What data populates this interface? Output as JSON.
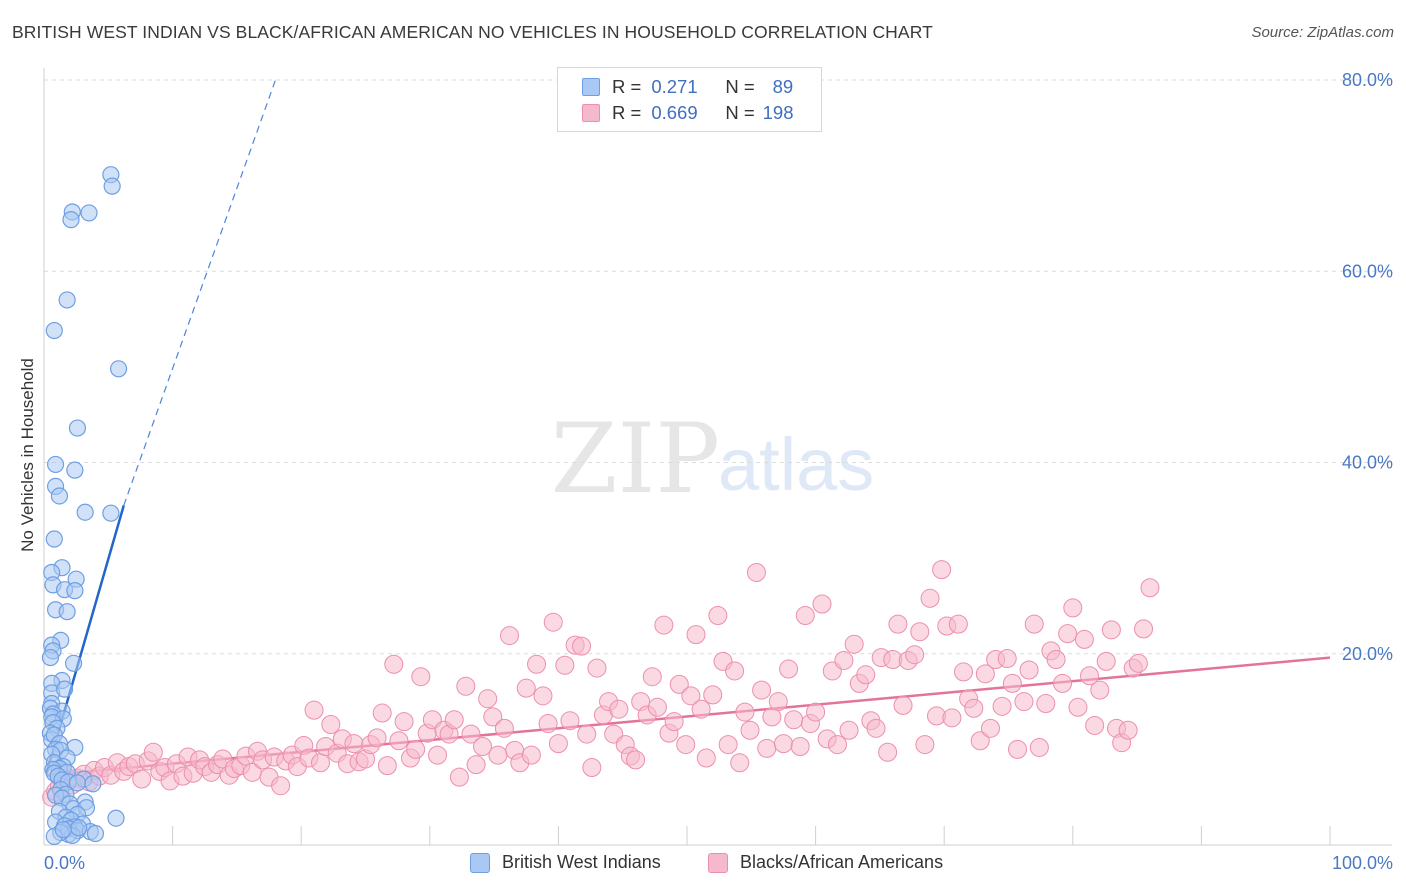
{
  "title": "BRITISH WEST INDIAN VS BLACK/AFRICAN AMERICAN NO VEHICLES IN HOUSEHOLD CORRELATION CHART",
  "source": "Source: ZipAtlas.com",
  "watermark": {
    "zip": "ZIP",
    "atlas": "atlas"
  },
  "colors": {
    "blue_fill": "#a9c8f3",
    "blue_stroke": "#6f9fe3",
    "blue_line": "#2266cc",
    "pink_fill": "#f6b9cc",
    "pink_stroke": "#ec8fae",
    "pink_line": "#e4739c",
    "tick_text": "#4a78c4",
    "grid": "#dcdcdc"
  },
  "legend": {
    "rows": [
      {
        "r_label": "R =",
        "r_value": "0.271",
        "n_label": "N =",
        "n_value": "89"
      },
      {
        "r_label": "R =",
        "r_value": "0.669",
        "n_label": "N =",
        "n_value": "198"
      }
    ]
  },
  "bottom_legend": [
    "British West Indians",
    "Blacks/African Americans"
  ],
  "chart_data": {
    "type": "scatter",
    "title": "BRITISH WEST INDIAN VS BLACK/AFRICAN AMERICAN NO VEHICLES IN HOUSEHOLD CORRELATION CHART",
    "xlabel": "",
    "ylabel": "No Vehicles in Household",
    "xlim": [
      0,
      100
    ],
    "ylim": [
      0,
      80
    ],
    "x_tick_labels": [
      "0.0%",
      "100.0%"
    ],
    "y_tick_labels": [
      "20.0%",
      "40.0%",
      "60.0%",
      "80.0%"
    ],
    "y_ticks": [
      20,
      40,
      60,
      80
    ],
    "grid": true,
    "legend_placement": "top-center",
    "series": [
      {
        "name": "British West Indians",
        "r": 0.271,
        "n": 89,
        "trend": {
          "x": [
            0.2,
            6.2
          ],
          "y": [
            7.5,
            35.5
          ],
          "extended_to": [
            18,
            80
          ]
        },
        "points": [
          [
            5.2,
            70.1
          ],
          [
            5.3,
            68.9
          ],
          [
            2.2,
            66.2
          ],
          [
            3.5,
            66.1
          ],
          [
            2.1,
            65.4
          ],
          [
            1.8,
            57.0
          ],
          [
            0.8,
            53.8
          ],
          [
            5.8,
            49.8
          ],
          [
            2.6,
            43.6
          ],
          [
            0.9,
            39.8
          ],
          [
            2.4,
            39.2
          ],
          [
            0.9,
            37.5
          ],
          [
            1.2,
            36.5
          ],
          [
            3.2,
            34.8
          ],
          [
            5.2,
            34.7
          ],
          [
            0.8,
            32.0
          ],
          [
            1.4,
            29.0
          ],
          [
            0.6,
            28.5
          ],
          [
            2.5,
            27.8
          ],
          [
            0.7,
            27.2
          ],
          [
            1.6,
            26.7
          ],
          [
            2.4,
            26.6
          ],
          [
            0.9,
            24.6
          ],
          [
            1.8,
            24.4
          ],
          [
            1.3,
            21.4
          ],
          [
            0.6,
            20.9
          ],
          [
            0.7,
            20.3
          ],
          [
            0.5,
            19.6
          ],
          [
            2.3,
            19.0
          ],
          [
            1.4,
            17.2
          ],
          [
            0.6,
            16.9
          ],
          [
            0.6,
            15.9
          ],
          [
            1.6,
            16.3
          ],
          [
            0.6,
            14.8
          ],
          [
            0.5,
            14.3
          ],
          [
            1.4,
            14.0
          ],
          [
            0.7,
            13.7
          ],
          [
            0.6,
            13.4
          ],
          [
            1.5,
            13.2
          ],
          [
            0.7,
            12.8
          ],
          [
            1.0,
            12.2
          ],
          [
            0.5,
            11.7
          ],
          [
            0.6,
            11.0
          ],
          [
            0.8,
            11.5
          ],
          [
            1.2,
            10.6
          ],
          [
            2.4,
            10.2
          ],
          [
            0.9,
            10.0
          ],
          [
            1.3,
            9.9
          ],
          [
            0.6,
            9.5
          ],
          [
            1.8,
            9.1
          ],
          [
            0.8,
            8.6
          ],
          [
            1.5,
            8.2
          ],
          [
            1.2,
            8.0
          ],
          [
            0.7,
            7.9
          ],
          [
            0.8,
            7.5
          ],
          [
            1.8,
            7.6
          ],
          [
            1.1,
            7.2
          ],
          [
            1.4,
            6.8
          ],
          [
            1.9,
            6.6
          ],
          [
            3.1,
            6.9
          ],
          [
            3.8,
            6.4
          ],
          [
            2.6,
            6.5
          ],
          [
            1.3,
            5.8
          ],
          [
            1.7,
            5.3
          ],
          [
            0.9,
            5.2
          ],
          [
            1.4,
            4.9
          ],
          [
            3.2,
            4.5
          ],
          [
            2.0,
            4.3
          ],
          [
            2.3,
            3.8
          ],
          [
            3.3,
            3.9
          ],
          [
            1.2,
            3.5
          ],
          [
            2.6,
            3.2
          ],
          [
            1.7,
            2.9
          ],
          [
            5.6,
            2.8
          ],
          [
            2.1,
            2.6
          ],
          [
            0.9,
            2.4
          ],
          [
            3.0,
            2.2
          ],
          [
            1.6,
            2.0
          ],
          [
            2.4,
            1.9
          ],
          [
            1.9,
            1.7
          ],
          [
            2.6,
            1.5
          ],
          [
            3.6,
            1.4
          ],
          [
            4.0,
            1.2
          ],
          [
            1.9,
            1.1
          ],
          [
            2.2,
            1.0
          ],
          [
            2.7,
            1.8
          ],
          [
            1.3,
            1.3
          ],
          [
            0.8,
            0.9
          ],
          [
            1.5,
            1.6
          ]
        ]
      },
      {
        "name": "Blacks/African Americans",
        "r": 0.669,
        "n": 198,
        "trend": {
          "x": [
            0.2,
            100
          ],
          "y": [
            7.3,
            19.6
          ]
        },
        "points": [
          [
            0.6,
            5.0
          ],
          [
            0.9,
            5.6
          ],
          [
            1.2,
            6.2
          ],
          [
            1.5,
            7.6
          ],
          [
            1.8,
            6.8
          ],
          [
            2.2,
            6.3
          ],
          [
            2.6,
            7.0
          ],
          [
            3.1,
            7.4
          ],
          [
            3.5,
            6.6
          ],
          [
            3.9,
            7.8
          ],
          [
            4.3,
            7.2
          ],
          [
            4.7,
            8.1
          ],
          [
            5.2,
            7.3
          ],
          [
            5.7,
            8.6
          ],
          [
            6.2,
            7.7
          ],
          [
            6.6,
            8.2
          ],
          [
            7.1,
            8.5
          ],
          [
            7.6,
            6.9
          ],
          [
            8.1,
            8.8
          ],
          [
            8.5,
            9.7
          ],
          [
            9.0,
            7.7
          ],
          [
            9.4,
            8.1
          ],
          [
            9.8,
            6.7
          ],
          [
            10.3,
            8.5
          ],
          [
            10.8,
            7.2
          ],
          [
            11.2,
            9.2
          ],
          [
            11.6,
            7.5
          ],
          [
            12.1,
            8.9
          ],
          [
            12.5,
            8.2
          ],
          [
            13.0,
            7.6
          ],
          [
            13.5,
            8.4
          ],
          [
            13.9,
            9.0
          ],
          [
            14.4,
            7.3
          ],
          [
            14.8,
            8.0
          ],
          [
            15.3,
            8.3
          ],
          [
            15.7,
            9.3
          ],
          [
            16.2,
            7.6
          ],
          [
            16.6,
            9.8
          ],
          [
            17.0,
            8.9
          ],
          [
            17.5,
            7.1
          ],
          [
            17.9,
            9.2
          ],
          [
            18.4,
            6.2
          ],
          [
            18.8,
            8.8
          ],
          [
            19.3,
            9.4
          ],
          [
            19.7,
            8.2
          ],
          [
            20.2,
            10.4
          ],
          [
            20.6,
            9.1
          ],
          [
            21.0,
            14.1
          ],
          [
            21.5,
            8.6
          ],
          [
            21.9,
            10.3
          ],
          [
            22.3,
            12.6
          ],
          [
            22.8,
            9.6
          ],
          [
            23.2,
            11.1
          ],
          [
            23.6,
            8.5
          ],
          [
            24.1,
            10.6
          ],
          [
            24.5,
            8.7
          ],
          [
            25.0,
            9.0
          ],
          [
            25.4,
            10.5
          ],
          [
            25.9,
            11.2
          ],
          [
            26.3,
            13.8
          ],
          [
            26.7,
            8.3
          ],
          [
            27.2,
            18.9
          ],
          [
            27.6,
            10.9
          ],
          [
            28.0,
            12.9
          ],
          [
            28.5,
            9.1
          ],
          [
            28.9,
            10.0
          ],
          [
            29.3,
            17.6
          ],
          [
            29.8,
            11.7
          ],
          [
            30.2,
            13.1
          ],
          [
            30.6,
            9.4
          ],
          [
            31.1,
            12.0
          ],
          [
            31.5,
            11.6
          ],
          [
            31.9,
            13.1
          ],
          [
            32.3,
            7.1
          ],
          [
            32.8,
            16.6
          ],
          [
            33.2,
            11.6
          ],
          [
            33.6,
            8.4
          ],
          [
            34.1,
            10.3
          ],
          [
            34.5,
            15.3
          ],
          [
            34.9,
            13.4
          ],
          [
            35.3,
            9.4
          ],
          [
            35.8,
            12.2
          ],
          [
            36.2,
            21.9
          ],
          [
            36.6,
            9.9
          ],
          [
            37.0,
            8.6
          ],
          [
            37.5,
            16.4
          ],
          [
            37.9,
            9.4
          ],
          [
            38.3,
            18.9
          ],
          [
            38.8,
            15.6
          ],
          [
            39.2,
            12.7
          ],
          [
            39.6,
            23.3
          ],
          [
            40.0,
            10.6
          ],
          [
            40.5,
            18.8
          ],
          [
            40.9,
            13.0
          ],
          [
            41.3,
            20.9
          ],
          [
            41.8,
            20.8
          ],
          [
            42.2,
            11.6
          ],
          [
            42.6,
            8.1
          ],
          [
            43.0,
            18.5
          ],
          [
            43.5,
            13.6
          ],
          [
            43.9,
            15.0
          ],
          [
            44.3,
            11.6
          ],
          [
            44.7,
            14.2
          ],
          [
            45.2,
            10.5
          ],
          [
            45.6,
            9.3
          ],
          [
            46.0,
            8.9
          ],
          [
            46.4,
            15.0
          ],
          [
            46.9,
            13.6
          ],
          [
            47.3,
            17.6
          ],
          [
            47.7,
            14.4
          ],
          [
            48.2,
            23.0
          ],
          [
            48.6,
            11.7
          ],
          [
            49.0,
            12.9
          ],
          [
            49.4,
            16.8
          ],
          [
            49.9,
            10.5
          ],
          [
            50.3,
            15.6
          ],
          [
            50.7,
            22.0
          ],
          [
            51.1,
            14.2
          ],
          [
            51.5,
            9.1
          ],
          [
            52.0,
            15.7
          ],
          [
            52.4,
            24.0
          ],
          [
            52.8,
            19.2
          ],
          [
            53.2,
            10.5
          ],
          [
            53.7,
            18.2
          ],
          [
            54.1,
            8.6
          ],
          [
            54.5,
            13.9
          ],
          [
            54.9,
            12.0
          ],
          [
            55.4,
            28.5
          ],
          [
            55.8,
            16.2
          ],
          [
            56.2,
            10.1
          ],
          [
            56.6,
            13.4
          ],
          [
            57.1,
            15.0
          ],
          [
            57.5,
            10.6
          ],
          [
            57.9,
            18.4
          ],
          [
            58.3,
            13.1
          ],
          [
            58.8,
            10.3
          ],
          [
            59.2,
            24.0
          ],
          [
            59.6,
            12.7
          ],
          [
            60.0,
            13.9
          ],
          [
            60.5,
            25.2
          ],
          [
            60.9,
            11.1
          ],
          [
            61.3,
            18.2
          ],
          [
            61.7,
            10.5
          ],
          [
            62.2,
            19.3
          ],
          [
            62.6,
            12.0
          ],
          [
            63.0,
            21.0
          ],
          [
            63.4,
            16.9
          ],
          [
            63.9,
            17.8
          ],
          [
            64.3,
            13.0
          ],
          [
            64.7,
            12.2
          ],
          [
            65.1,
            19.6
          ],
          [
            65.6,
            9.7
          ],
          [
            66.0,
            19.4
          ],
          [
            66.4,
            23.1
          ],
          [
            66.8,
            14.6
          ],
          [
            67.2,
            19.3
          ],
          [
            67.7,
            19.9
          ],
          [
            68.1,
            22.3
          ],
          [
            68.5,
            10.5
          ],
          [
            68.9,
            25.8
          ],
          [
            69.4,
            13.5
          ],
          [
            69.8,
            28.8
          ],
          [
            70.2,
            22.9
          ],
          [
            70.6,
            13.3
          ],
          [
            71.1,
            23.1
          ],
          [
            71.5,
            18.1
          ],
          [
            71.9,
            15.3
          ],
          [
            72.3,
            14.3
          ],
          [
            72.8,
            10.9
          ],
          [
            73.2,
            17.9
          ],
          [
            73.6,
            12.2
          ],
          [
            74.0,
            19.4
          ],
          [
            74.5,
            14.5
          ],
          [
            74.9,
            19.5
          ],
          [
            75.3,
            16.9
          ],
          [
            75.7,
            10.0
          ],
          [
            76.2,
            15.0
          ],
          [
            76.6,
            18.3
          ],
          [
            77.0,
            23.1
          ],
          [
            77.4,
            10.2
          ],
          [
            77.9,
            14.8
          ],
          [
            78.3,
            20.3
          ],
          [
            78.7,
            19.4
          ],
          [
            79.2,
            16.9
          ],
          [
            79.6,
            22.1
          ],
          [
            80.0,
            24.8
          ],
          [
            80.4,
            14.4
          ],
          [
            80.9,
            21.5
          ],
          [
            81.3,
            17.7
          ],
          [
            81.7,
            12.5
          ],
          [
            82.1,
            16.2
          ],
          [
            82.6,
            19.2
          ],
          [
            83.0,
            22.5
          ],
          [
            83.4,
            12.2
          ],
          [
            83.8,
            10.7
          ],
          [
            84.3,
            12.0
          ],
          [
            84.7,
            18.5
          ],
          [
            85.1,
            19.0
          ],
          [
            85.5,
            22.6
          ],
          [
            86.0,
            26.9
          ]
        ]
      }
    ]
  }
}
